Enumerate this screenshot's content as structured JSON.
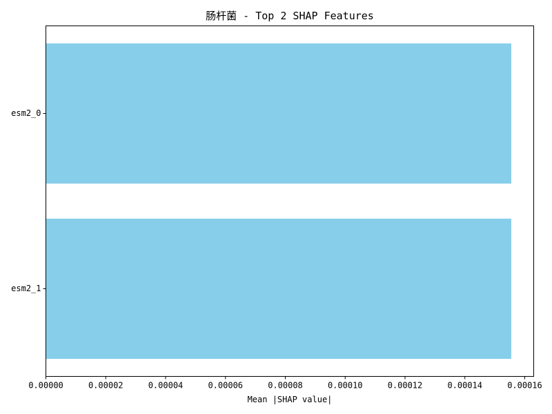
{
  "chart_data": {
    "type": "bar",
    "orientation": "horizontal",
    "title": "肠杆菌 - Top 2 SHAP Features",
    "xlabel": "Mean |SHAP value|",
    "ylabel": "",
    "categories": [
      "esm2_0",
      "esm2_1"
    ],
    "values": [
      0.0001555,
      0.0001555
    ],
    "xlim": [
      0,
      0.000163
    ],
    "xticks": [
      0,
      2e-05,
      4e-05,
      6e-05,
      8e-05,
      0.0001,
      0.00012,
      0.00014,
      0.00016
    ],
    "xtick_labels": [
      "0.00000",
      "0.00002",
      "0.00004",
      "0.00006",
      "0.00008",
      "0.00010",
      "0.00012",
      "0.00014",
      "0.00016"
    ],
    "bar_color": "#87ceeb",
    "grid": false,
    "legend": "none"
  }
}
